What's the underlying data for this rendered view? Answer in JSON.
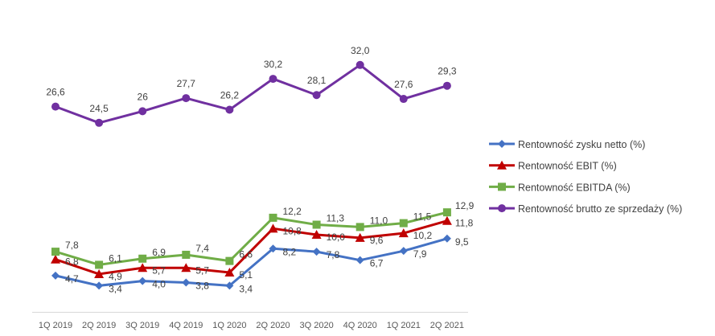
{
  "chart_data": {
    "type": "line",
    "title": "",
    "xlabel": "",
    "ylabel": "",
    "ylim": [
      0,
      40
    ],
    "grid": false,
    "legend_position": "right",
    "categories": [
      "1Q 2019",
      "2Q 2019",
      "3Q 2019",
      "4Q 2019",
      "1Q 2020",
      "2Q 2020",
      "3Q 2020",
      "4Q 2020",
      "1Q 2021",
      "2Q 2021"
    ],
    "series": [
      {
        "name": "Rentowność zysku netto (%)",
        "color": "#4472C4",
        "marker": "diamond",
        "values": [
          4.7,
          3.4,
          4.0,
          3.8,
          3.4,
          8.2,
          7.8,
          6.7,
          7.9,
          9.5
        ],
        "labels": [
          "4,7",
          "3,4",
          "4,0",
          "3,8",
          "3,4",
          "8,2",
          "7,8",
          "6,7",
          "7,9",
          "9,5"
        ]
      },
      {
        "name": "Rentowność EBIT (%)",
        "color": "#C00000",
        "marker": "triangle",
        "values": [
          6.8,
          4.9,
          5.7,
          5.7,
          5.1,
          10.8,
          10.0,
          9.6,
          10.2,
          11.8
        ],
        "labels": [
          "6,8",
          "4,9",
          "5,7",
          "5,7",
          "5,1",
          "10,8",
          "10,0",
          "9,6",
          "10,2",
          "11,8"
        ]
      },
      {
        "name": "Rentowność EBITDA (%)",
        "color": "#70AD47",
        "marker": "square",
        "values": [
          7.8,
          6.1,
          6.9,
          7.4,
          6.6,
          12.2,
          11.3,
          11.0,
          11.5,
          12.9
        ],
        "labels": [
          "7,8",
          "6,1",
          "6,9",
          "7,4",
          "6,6",
          "12,2",
          "11,3",
          "11,0",
          "11,5",
          "12,9"
        ]
      },
      {
        "name": "Rentowność brutto ze sprzedaży (%)",
        "color": "#7030A0",
        "marker": "circle",
        "values": [
          26.6,
          24.5,
          26.0,
          27.7,
          26.2,
          30.2,
          28.1,
          32.0,
          27.6,
          29.3
        ],
        "labels": [
          "26,6",
          "24,5",
          "26",
          "27,7",
          "26,2",
          "30,2",
          "28,1",
          "32,0",
          "27,6",
          "29,3"
        ]
      }
    ]
  }
}
